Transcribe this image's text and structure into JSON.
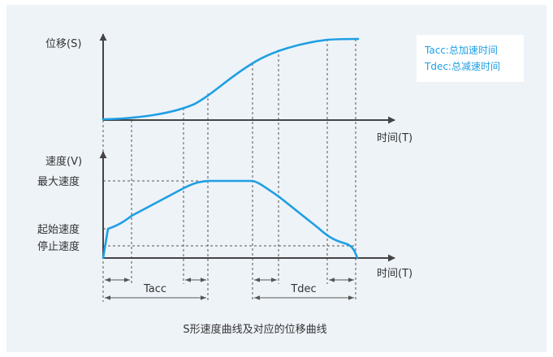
{
  "diagram": {
    "title": "S形速度曲线及对应的位移曲线",
    "colors": {
      "curve": "#1e9fe4",
      "axis": "#444444",
      "text": "#333333",
      "panel": "#eef3f8",
      "guide": "#555555"
    },
    "displacement_chart": {
      "y_label": "位移(S)",
      "x_label": "时间(T)"
    },
    "velocity_chart": {
      "y_label": "速度(V)",
      "x_label": "时间(T)",
      "level_labels": {
        "max_speed": "最大速度",
        "start_speed": "起始速度",
        "stop_speed": "停止速度"
      }
    },
    "intervals": {
      "acc_label": "Tacc",
      "dec_label": "Tdec"
    },
    "legend": {
      "items": [
        "Tacc:总加速时间",
        "Tdec:总减速时间"
      ]
    }
  }
}
